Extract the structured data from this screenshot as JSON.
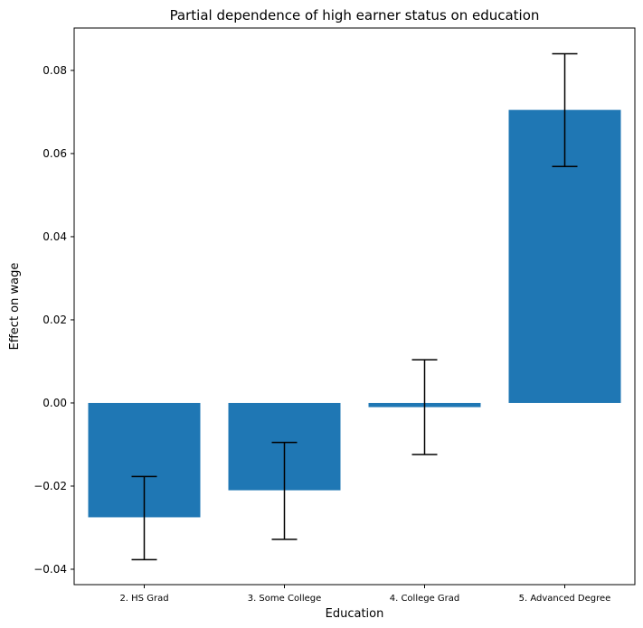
{
  "chart_data": {
    "type": "bar",
    "title": "Partial dependence of high earner status on education",
    "xlabel": "Education",
    "ylabel": "Effect on wage",
    "categories": [
      "2. HS Grad",
      "3. Some College",
      "4. College Grad",
      "5. Advanced Degree"
    ],
    "values": [
      -0.0275,
      -0.021,
      -0.001,
      0.0705
    ],
    "error_low": [
      -0.0377,
      -0.0328,
      -0.0124,
      0.0569
    ],
    "error_high": [
      -0.0177,
      -0.0095,
      0.0104,
      0.084
    ],
    "ylim": [
      -0.0437,
      0.0902
    ],
    "yticks": [
      -0.04,
      -0.02,
      0.0,
      0.02,
      0.04,
      0.06,
      0.08
    ],
    "ytick_labels": [
      "−0.04",
      "−0.02",
      "0.00",
      "0.02",
      "0.04",
      "0.06",
      "0.08"
    ],
    "bar_color": "#1f77b4",
    "errorbar_color": "#000000",
    "grid": false
  }
}
